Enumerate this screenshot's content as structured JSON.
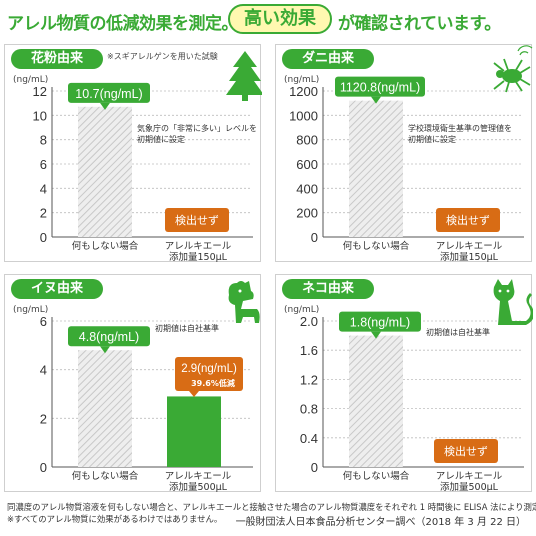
{
  "headline": {
    "part1": "アレル物質の低減効果を測定。",
    "highlight": "高い効果",
    "part2": "が確認されています。"
  },
  "colors": {
    "green": "#3aaa35",
    "orange": "#d86c15",
    "gray_bar": "#d4d4d4"
  },
  "panels": [
    {
      "tag": "花粉由来",
      "top_note": "※スギアレルゲンを用いた試験",
      "unit": "(ng/mL)",
      "icon": "pine-tree-icon",
      "callout_green": "10.7(ng/mL)",
      "side_note": [
        "気象庁の「非常に多い」レベルを",
        "初期値に設定"
      ],
      "orange_box": "検出せず",
      "x_labels": [
        [
          "何もしない場合"
        ],
        [
          "アレルキエール",
          "添加量150μL"
        ]
      ]
    },
    {
      "tag": "ダニ由来",
      "unit": "(ng/mL)",
      "icon": "mite-icon",
      "callout_green": "1120.8(ng/mL)",
      "side_note": [
        "学校環境衛生基準の管理値を",
        "初期値に設定"
      ],
      "orange_box": "検出せず",
      "x_labels": [
        [
          "何もしない場合"
        ],
        [
          "アレルキエール",
          "添加量150μL"
        ]
      ]
    },
    {
      "tag": "イヌ由来",
      "unit": "(ng/mL)",
      "icon": "dog-icon",
      "callout_green": "4.8(ng/mL)",
      "side_note": [
        "初期値は自社基準"
      ],
      "callout_orange": "2.9(ng/mL)",
      "callout_orange_sub": "39.6%低減",
      "x_labels": [
        [
          "何もしない場合"
        ],
        [
          "アレルキエール",
          "添加量500μL"
        ]
      ]
    },
    {
      "tag": "ネコ由来",
      "unit": "(ng/mL)",
      "icon": "cat-icon",
      "callout_green": "1.8(ng/mL)",
      "side_note": [
        "初期値は自社基準"
      ],
      "orange_box": "検出せず",
      "x_labels": [
        [
          "何もしない場合"
        ],
        [
          "アレルキエール",
          "添加量500μL"
        ]
      ]
    }
  ],
  "chart_data": [
    {
      "type": "bar",
      "categories": [
        "何もしない場合",
        "アレルキエール 添加量150μL"
      ],
      "values": [
        10.7,
        0
      ],
      "ylabel": "(ng/mL)",
      "ylim": [
        0,
        12
      ],
      "yticks": [
        0,
        2,
        4,
        6,
        8,
        10,
        12
      ]
    },
    {
      "type": "bar",
      "categories": [
        "何もしない場合",
        "アレルキエール 添加量150μL"
      ],
      "values": [
        1120.8,
        0
      ],
      "ylabel": "(ng/mL)",
      "ylim": [
        0,
        1200
      ],
      "yticks": [
        0,
        200,
        400,
        600,
        800,
        1000,
        1200
      ]
    },
    {
      "type": "bar",
      "categories": [
        "何もしない場合",
        "アレルキエール 添加量500μL"
      ],
      "values": [
        4.8,
        2.9
      ],
      "ylabel": "(ng/mL)",
      "ylim": [
        0,
        6
      ],
      "yticks": [
        0,
        2,
        4,
        6
      ]
    },
    {
      "type": "bar",
      "categories": [
        "何もしない場合",
        "アレルキエール 添加量500μL"
      ],
      "values": [
        1.8,
        0
      ],
      "ylabel": "(ng/mL)",
      "ylim": [
        0,
        2.0
      ],
      "yticks": [
        "0",
        "0.4",
        "0.8",
        "1.2",
        "1.6",
        "2.0"
      ]
    }
  ],
  "footer": {
    "line1": "同濃度のアレル物質溶液を何もしない場合と、アレルキエールと接触させた場合のアレル物質濃度をそれぞれ 1 時間後に ELISA 法により測定",
    "line2": "※すべてのアレル物質に効果があるわけではありません。",
    "source": "一般財団法人日本食品分析センター調べ（2018 年 3 月 22 日）"
  }
}
